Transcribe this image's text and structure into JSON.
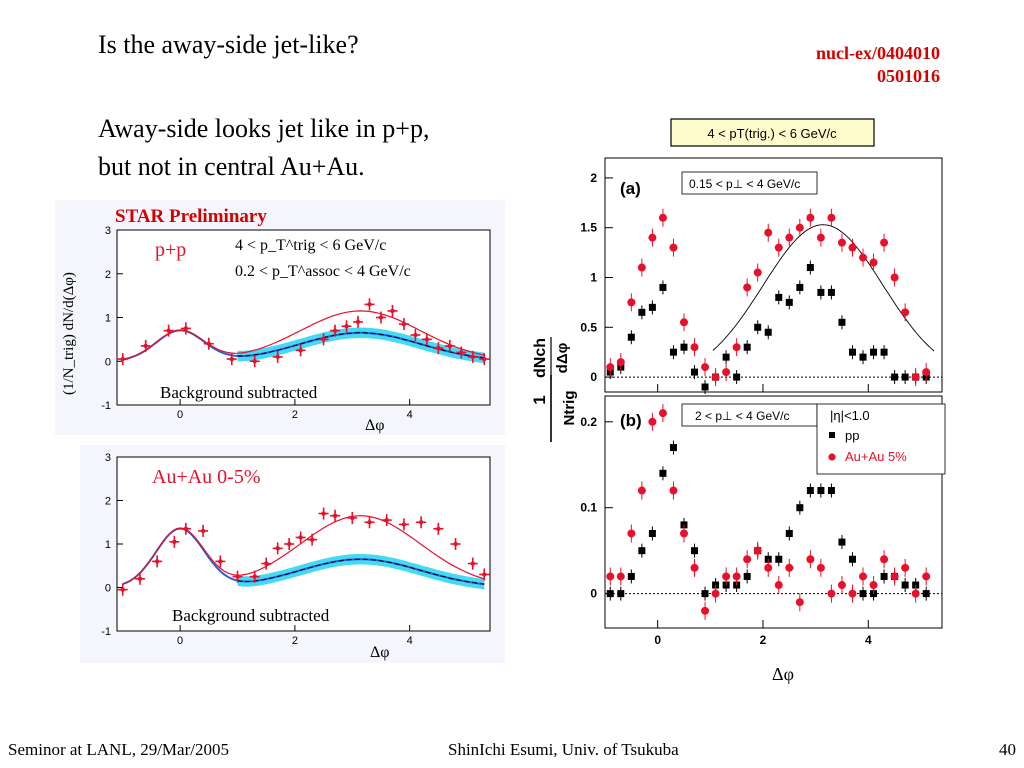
{
  "slide": {
    "title": "Is the away-side jet-like?",
    "refs": [
      "nucl-ex/0404010",
      "0501016"
    ],
    "body_lines": [
      "Away-side looks jet like in p+p,",
      "but not in central Au+Au."
    ],
    "footer_left": "Seminor at LANL, 29/Mar/2005",
    "footer_center": "ShinIchi Esumi, Univ. of Tsukuba",
    "footer_right": "40"
  },
  "colors": {
    "red": "#e8102a",
    "black": "#000000",
    "band": "#22d3f0",
    "blue": "#2b5fd6",
    "ref_red": "#d40000"
  },
  "chart_data": [
    {
      "id": "star-pp",
      "type": "scatter",
      "banner": "STAR Preliminary",
      "label": "p+p",
      "cut1": "4 < p_T^trig < 6 GeV/c",
      "cut2": "0.2 < p_T^assoc < 4 GeV/c",
      "note": "Background subtracted",
      "ylabel": "(1/N_trig) dN/d(Δφ)",
      "xlabel": "Δφ",
      "xticks": [
        0,
        2,
        4
      ],
      "yticks": [
        -1,
        0,
        1,
        2,
        3
      ],
      "xlim": [
        -1.1,
        5.4
      ],
      "ylim": [
        -1,
        3
      ],
      "x": [
        -1.0,
        -0.6,
        -0.2,
        0.1,
        0.5,
        0.9,
        1.3,
        1.7,
        2.1,
        2.5,
        2.7,
        2.9,
        3.1,
        3.3,
        3.5,
        3.7,
        3.9,
        4.1,
        4.3,
        4.5,
        4.7,
        4.9,
        5.1,
        5.3
      ],
      "y": [
        0.05,
        0.35,
        0.7,
        0.75,
        0.4,
        0.05,
        0.0,
        0.1,
        0.25,
        0.5,
        0.7,
        0.8,
        0.9,
        1.3,
        1.0,
        1.15,
        0.85,
        0.6,
        0.5,
        0.3,
        0.35,
        0.2,
        0.1,
        0.05
      ]
    },
    {
      "id": "star-auau",
      "type": "scatter",
      "label": "Au+Au 0-5%",
      "note": "Background subtracted",
      "xlabel": "Δφ",
      "xticks": [
        0,
        2,
        4
      ],
      "yticks": [
        -1,
        0,
        1,
        2,
        3
      ],
      "xlim": [
        -1.1,
        5.4
      ],
      "ylim": [
        -1,
        3
      ],
      "x": [
        -1.0,
        -0.7,
        -0.4,
        -0.1,
        0.1,
        0.4,
        0.7,
        1.0,
        1.3,
        1.5,
        1.7,
        1.9,
        2.1,
        2.3,
        2.5,
        2.7,
        3.0,
        3.3,
        3.6,
        3.9,
        4.2,
        4.5,
        4.8,
        5.1,
        5.3
      ],
      "y": [
        -0.05,
        0.2,
        0.6,
        1.05,
        1.35,
        1.3,
        0.6,
        0.25,
        0.25,
        0.55,
        0.9,
        1.0,
        1.15,
        1.1,
        1.7,
        1.65,
        1.6,
        1.5,
        1.55,
        1.45,
        1.5,
        1.35,
        1.0,
        0.55,
        0.3
      ]
    },
    {
      "id": "phenix-a",
      "type": "scatter",
      "header": "4 < pT(trig.) < 6 GeV/c",
      "panel": "(a)",
      "cut": "0.15 < p⊥ < 4 GeV/c",
      "ylabel_top": "dNch",
      "ylabel_den": "dΔφ",
      "yticks": [
        0,
        0.5,
        1,
        1.5,
        2
      ],
      "xlim": [
        -1.0,
        5.4
      ],
      "ylim": [
        -0.15,
        2.2
      ],
      "series": [
        {
          "name": "Au+Au 5%",
          "x": [
            -0.9,
            -0.7,
            -0.5,
            -0.3,
            -0.1,
            0.1,
            0.3,
            0.5,
            0.7,
            0.9,
            1.1,
            1.3,
            1.5,
            1.7,
            1.9,
            2.1,
            2.3,
            2.5,
            2.7,
            2.9,
            3.1,
            3.3,
            3.5,
            3.7,
            3.9,
            4.1,
            4.3,
            4.5,
            4.7,
            4.9,
            5.1
          ],
          "y": [
            0.1,
            0.15,
            0.75,
            1.1,
            1.4,
            1.6,
            1.3,
            0.55,
            0.3,
            0.1,
            0.0,
            0.05,
            0.3,
            0.9,
            1.05,
            1.45,
            1.3,
            1.4,
            1.5,
            1.6,
            1.4,
            1.6,
            1.35,
            1.3,
            1.2,
            1.15,
            1.35,
            1.0,
            0.65,
            0.0,
            0.05
          ]
        },
        {
          "name": "pp",
          "x": [
            -0.9,
            -0.7,
            -0.5,
            -0.3,
            -0.1,
            0.1,
            0.3,
            0.5,
            0.7,
            0.9,
            1.1,
            1.3,
            1.5,
            1.7,
            1.9,
            2.1,
            2.3,
            2.5,
            2.7,
            2.9,
            3.1,
            3.3,
            3.5,
            3.7,
            3.9,
            4.1,
            4.3,
            4.5,
            4.7,
            4.9,
            5.1
          ],
          "y": [
            0.05,
            0.1,
            0.4,
            0.65,
            0.7,
            0.9,
            0.25,
            0.3,
            0.05,
            -0.1,
            0.0,
            0.2,
            0.0,
            0.3,
            0.5,
            0.45,
            0.8,
            0.75,
            0.9,
            1.1,
            0.85,
            0.85,
            0.55,
            0.25,
            0.2,
            0.25,
            0.25,
            0.0,
            0.0,
            0.0,
            0.0
          ]
        }
      ]
    },
    {
      "id": "phenix-b",
      "type": "scatter",
      "panel": "(b)",
      "cut": "2 < p⊥ < 4 GeV/c",
      "legend_eta": "|η|<1.0",
      "legend_position": "top-right",
      "xlabel": "Δφ",
      "ylabel_num": "1",
      "ylabel_den": "Ntrig",
      "yticks": [
        0,
        0.1,
        0.2
      ],
      "xticks": [
        0,
        2,
        4
      ],
      "xlim": [
        -1.0,
        5.4
      ],
      "ylim": [
        -0.04,
        0.23
      ],
      "series": [
        {
          "name": "Au+Au 5%",
          "x": [
            -0.9,
            -0.7,
            -0.5,
            -0.3,
            -0.1,
            0.1,
            0.3,
            0.5,
            0.7,
            0.9,
            1.1,
            1.3,
            1.5,
            1.7,
            1.9,
            2.1,
            2.3,
            2.5,
            2.7,
            2.9,
            3.1,
            3.3,
            3.5,
            3.7,
            3.9,
            4.1,
            4.3,
            4.5,
            4.7,
            4.9,
            5.1
          ],
          "y": [
            0.02,
            0.02,
            0.07,
            0.12,
            0.2,
            0.21,
            0.12,
            0.07,
            0.03,
            -0.02,
            0.0,
            0.02,
            0.02,
            0.04,
            0.05,
            0.03,
            0.01,
            0.03,
            -0.01,
            0.04,
            0.03,
            0.0,
            0.01,
            0.0,
            0.02,
            0.01,
            0.04,
            0.02,
            0.03,
            0.0,
            0.02
          ]
        },
        {
          "name": "pp",
          "x": [
            -0.9,
            -0.7,
            -0.5,
            -0.3,
            -0.1,
            0.1,
            0.3,
            0.5,
            0.7,
            0.9,
            1.1,
            1.3,
            1.5,
            1.7,
            1.9,
            2.1,
            2.3,
            2.5,
            2.7,
            2.9,
            3.1,
            3.3,
            3.5,
            3.7,
            3.9,
            4.1,
            4.3,
            4.5,
            4.7,
            4.9,
            5.1
          ],
          "y": [
            0.0,
            0.0,
            0.02,
            0.05,
            0.07,
            0.14,
            0.17,
            0.08,
            0.05,
            0.0,
            0.01,
            0.01,
            0.01,
            0.02,
            0.05,
            0.04,
            0.04,
            0.07,
            0.1,
            0.12,
            0.12,
            0.12,
            0.06,
            0.04,
            0.0,
            0.0,
            0.02,
            0.02,
            0.01,
            0.01,
            0.0
          ]
        }
      ]
    }
  ]
}
